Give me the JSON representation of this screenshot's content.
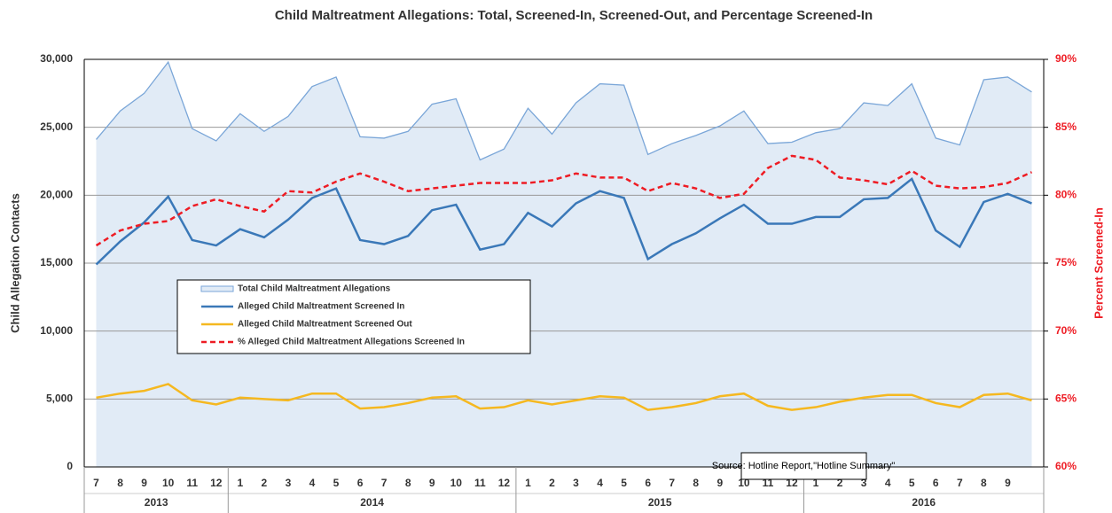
{
  "chart_data": {
    "type": "line",
    "title": "Child Maltreatment Allegations: Total, Screened-In, Screened-Out, and Percentage Screened-In",
    "ylabel": "Child Allegation Contacts",
    "y2label": "Percent Screened-In",
    "annotation": "Source: Hotline Report,\"Hotline Summary\"",
    "categories": [
      "7",
      "8",
      "9",
      "10",
      "11",
      "12",
      "1",
      "2",
      "3",
      "4",
      "5",
      "6",
      "7",
      "8",
      "9",
      "10",
      "11",
      "12",
      "1",
      "2",
      "3",
      "4",
      "5",
      "6",
      "7",
      "8",
      "9",
      "10",
      "11",
      "12",
      "1",
      "2",
      "3",
      "4",
      "5",
      "6",
      "7",
      "8",
      "9",
      null
    ],
    "groups": [
      {
        "label": "2013",
        "size": 6
      },
      {
        "label": "2014",
        "size": 12
      },
      {
        "label": "2015",
        "size": 12
      },
      {
        "label": "2016",
        "size": 10
      }
    ],
    "ylim": [
      0,
      30000
    ],
    "yticks": [
      0,
      {
        "value": 5000,
        "label": "5,000"
      },
      {
        "value": 10000,
        "label": "10,000"
      },
      {
        "value": 15000,
        "label": "15,000"
      },
      {
        "value": 20000,
        "label": "20,000"
      },
      {
        "value": 25000,
        "label": "25,000"
      },
      {
        "value": 30000,
        "label": "30,000"
      }
    ],
    "y2lim": [
      60,
      90
    ],
    "y2ticks": [
      {
        "value": 60,
        "label": "60%"
      },
      {
        "value": 65,
        "label": "65%"
      },
      {
        "value": 70,
        "label": "70%"
      },
      {
        "value": 75,
        "label": "75%"
      },
      {
        "value": 80,
        "label": "80%"
      },
      {
        "value": 85,
        "label": "85%"
      },
      {
        "value": 90,
        "label": "90%"
      }
    ],
    "grid": true,
    "series": [
      {
        "name": "Total Child Maltreatment Allegations",
        "kind": "area",
        "color": "#7aa6d8",
        "fill": "#e1ebf6",
        "values": [
          24100,
          26200,
          27500,
          29800,
          24900,
          24000,
          26000,
          24700,
          25800,
          28000,
          28700,
          24300,
          24200,
          24700,
          26700,
          27100,
          22600,
          23400,
          26400,
          24500,
          26800,
          28200,
          28100,
          23000,
          23800,
          24400,
          25100,
          26200,
          23800,
          23900,
          24600,
          24900,
          26800,
          26600,
          28200,
          24200,
          23700,
          28500,
          28700,
          27600
        ]
      },
      {
        "name": "Alleged Child Maltreatment Screened In",
        "kind": "line",
        "color": "#3a78b8",
        "values": [
          14900,
          16600,
          18000,
          19900,
          16700,
          16300,
          17500,
          16900,
          18200,
          19800,
          20500,
          16700,
          16400,
          17000,
          18900,
          19300,
          16000,
          16400,
          18700,
          17700,
          19400,
          20300,
          19800,
          15300,
          16400,
          17200,
          18300,
          19300,
          17900,
          17900,
          18400,
          18400,
          19700,
          19800,
          21200,
          17400,
          16200,
          19500,
          20100,
          19400
        ]
      },
      {
        "name": "Alleged Child Maltreatment Screened Out",
        "kind": "line",
        "color": "#f5b820",
        "values": [
          5100,
          5400,
          5600,
          6100,
          4900,
          4600,
          5100,
          5000,
          4900,
          5400,
          5400,
          4300,
          4400,
          4700,
          5100,
          5200,
          4300,
          4400,
          4900,
          4600,
          4900,
          5200,
          5100,
          4200,
          4400,
          4700,
          5200,
          5400,
          4500,
          4200,
          4400,
          4800,
          5100,
          5300,
          5300,
          4700,
          4400,
          5300,
          5400,
          4900
        ]
      },
      {
        "name": "% Alleged Child Maltreatment Allegations Screened In",
        "kind": "line",
        "dashed": true,
        "axis": "y2",
        "color": "#ee1c24",
        "values": [
          76.3,
          77.4,
          77.9,
          78.1,
          79.2,
          79.7,
          79.2,
          78.8,
          80.3,
          80.2,
          81.0,
          81.6,
          81.0,
          80.3,
          80.5,
          80.7,
          80.9,
          80.9,
          80.9,
          81.1,
          81.6,
          81.3,
          81.3,
          80.3,
          80.9,
          80.5,
          79.8,
          80.1,
          82.0,
          82.9,
          82.6,
          81.3,
          81.1,
          80.8,
          81.8,
          80.7,
          80.5,
          80.6,
          80.9,
          81.7
        ]
      }
    ]
  }
}
